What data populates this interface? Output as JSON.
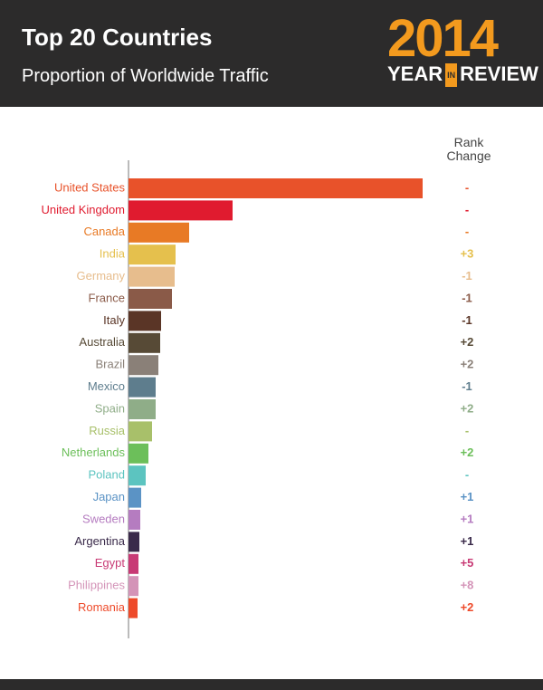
{
  "header": {
    "title": "Top 20 Countries",
    "subtitle": "Proportion of Worldwide Traffic",
    "logo": {
      "year": "2014",
      "year_word": "YEAR",
      "in_word": "IN",
      "review_word": "REVIEW"
    }
  },
  "chart_data": {
    "type": "bar",
    "orientation": "horizontal",
    "categories": [
      "United States",
      "United Kingdom",
      "Canada",
      "India",
      "Germany",
      "France",
      "Italy",
      "Australia",
      "Brazil",
      "Mexico",
      "Spain",
      "Russia",
      "Netherlands",
      "Poland",
      "Japan",
      "Sweden",
      "Argentina",
      "Egypt",
      "Philippines",
      "Romania"
    ],
    "values": [
      325,
      115,
      67,
      52,
      51,
      48,
      36,
      35,
      33,
      30,
      30,
      26,
      22,
      19,
      14,
      13,
      12,
      11,
      11,
      10
    ],
    "colors": [
      "#e8522a",
      "#e01b2f",
      "#e87a25",
      "#e5c04d",
      "#e7bd8d",
      "#8a5a48",
      "#5a3526",
      "#574a36",
      "#8a8078",
      "#5e7d8d",
      "#8fad88",
      "#a8c06a",
      "#6cbf5a",
      "#5cc4c0",
      "#5b93c5",
      "#b57cc0",
      "#3a2a4a",
      "#c83a75",
      "#d494b8",
      "#ee4a2a"
    ],
    "rank_change_title": "Rank Change",
    "rank_change": [
      "-",
      "-",
      "-",
      "+3",
      "-1",
      "-1",
      "-1",
      "+2",
      "+2",
      "-1",
      "+2",
      "-",
      "+2",
      "-",
      "+1",
      "+1",
      "+1",
      "+5",
      "+8",
      "+2"
    ]
  }
}
